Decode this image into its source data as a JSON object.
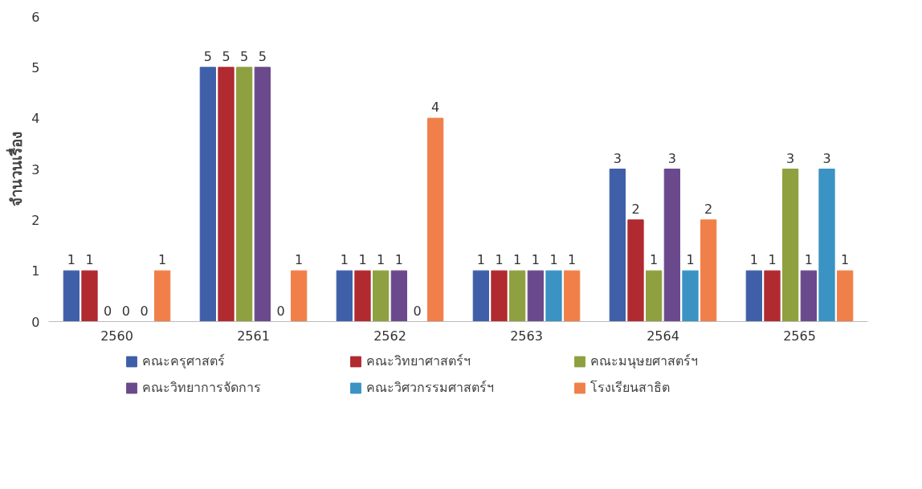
{
  "chart_data": {
    "type": "bar",
    "ylabel": "จำนวนเรื่อง",
    "categories": [
      "2560",
      "2561",
      "2562",
      "2563",
      "2564",
      "2565"
    ],
    "series": [
      {
        "name": "คณะครุศาสตร์",
        "color": "#3f5fa8",
        "values": [
          1,
          5,
          1,
          1,
          3,
          1
        ]
      },
      {
        "name": "คณะวิทยาศาสตร์ฯ",
        "color": "#b02a30",
        "values": [
          1,
          5,
          1,
          1,
          2,
          1
        ]
      },
      {
        "name": "คณะมนุษยศาสตร์ฯ",
        "color": "#8ea03f",
        "values": [
          0,
          5,
          1,
          1,
          1,
          3
        ]
      },
      {
        "name": "คณะวิทยาการจัดการ",
        "color": "#6a4a8c",
        "values": [
          0,
          5,
          1,
          1,
          3,
          1
        ]
      },
      {
        "name": "คณะวิศวกรรมศาสตร์ฯ",
        "color": "#3a93c3",
        "values": [
          0,
          0,
          0,
          1,
          1,
          3
        ]
      },
      {
        "name": "โรงเรียนสาธิต",
        "color": "#f07f4a",
        "values": [
          1,
          1,
          4,
          1,
          2,
          1
        ]
      }
    ],
    "ylim": [
      0,
      6
    ],
    "yticks": [
      0,
      1,
      2,
      3,
      4,
      5,
      6
    ],
    "grid": false,
    "legend": "bottom",
    "data_labels": true
  }
}
